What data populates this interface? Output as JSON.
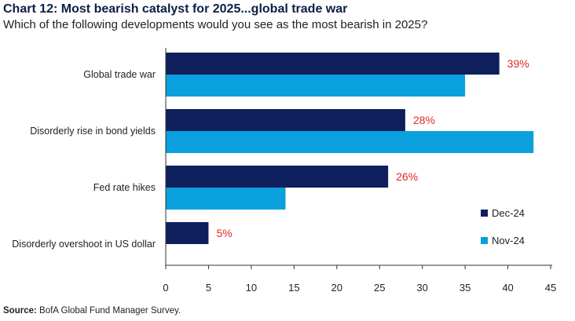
{
  "title": "Chart 12: Most bearish catalyst for 2025...global trade war",
  "subtitle": "Which of the following developments would you see as the most bearish in 2025?",
  "source": {
    "label": "Source:",
    "text": "BofA Global Fund Manager Survey."
  },
  "colors": {
    "dec24": "#0f1f5c",
    "nov24": "#0aa0dd",
    "data_label": "#e32626",
    "axis": "#333333",
    "text": "#222222"
  },
  "chart_data": {
    "type": "bar",
    "orientation": "horizontal",
    "categories": [
      "Global trade war",
      "Disorderly rise in bond yields",
      "Fed rate hikes",
      "Disorderly overshoot in US dollar"
    ],
    "series": [
      {
        "name": "Dec-24",
        "values": [
          39,
          28,
          26,
          5
        ],
        "labels": [
          "39%",
          "28%",
          "26%",
          "5%"
        ]
      },
      {
        "name": "Nov-24",
        "values": [
          35,
          43,
          14,
          null
        ],
        "labels": [
          null,
          null,
          null,
          null
        ]
      }
    ],
    "xlim": [
      0,
      45
    ],
    "xticks": [
      0,
      5,
      10,
      15,
      20,
      25,
      30,
      35,
      40,
      45
    ],
    "xlabel": "",
    "ylabel": "",
    "legend_position": "bottom-right",
    "grid": false
  }
}
